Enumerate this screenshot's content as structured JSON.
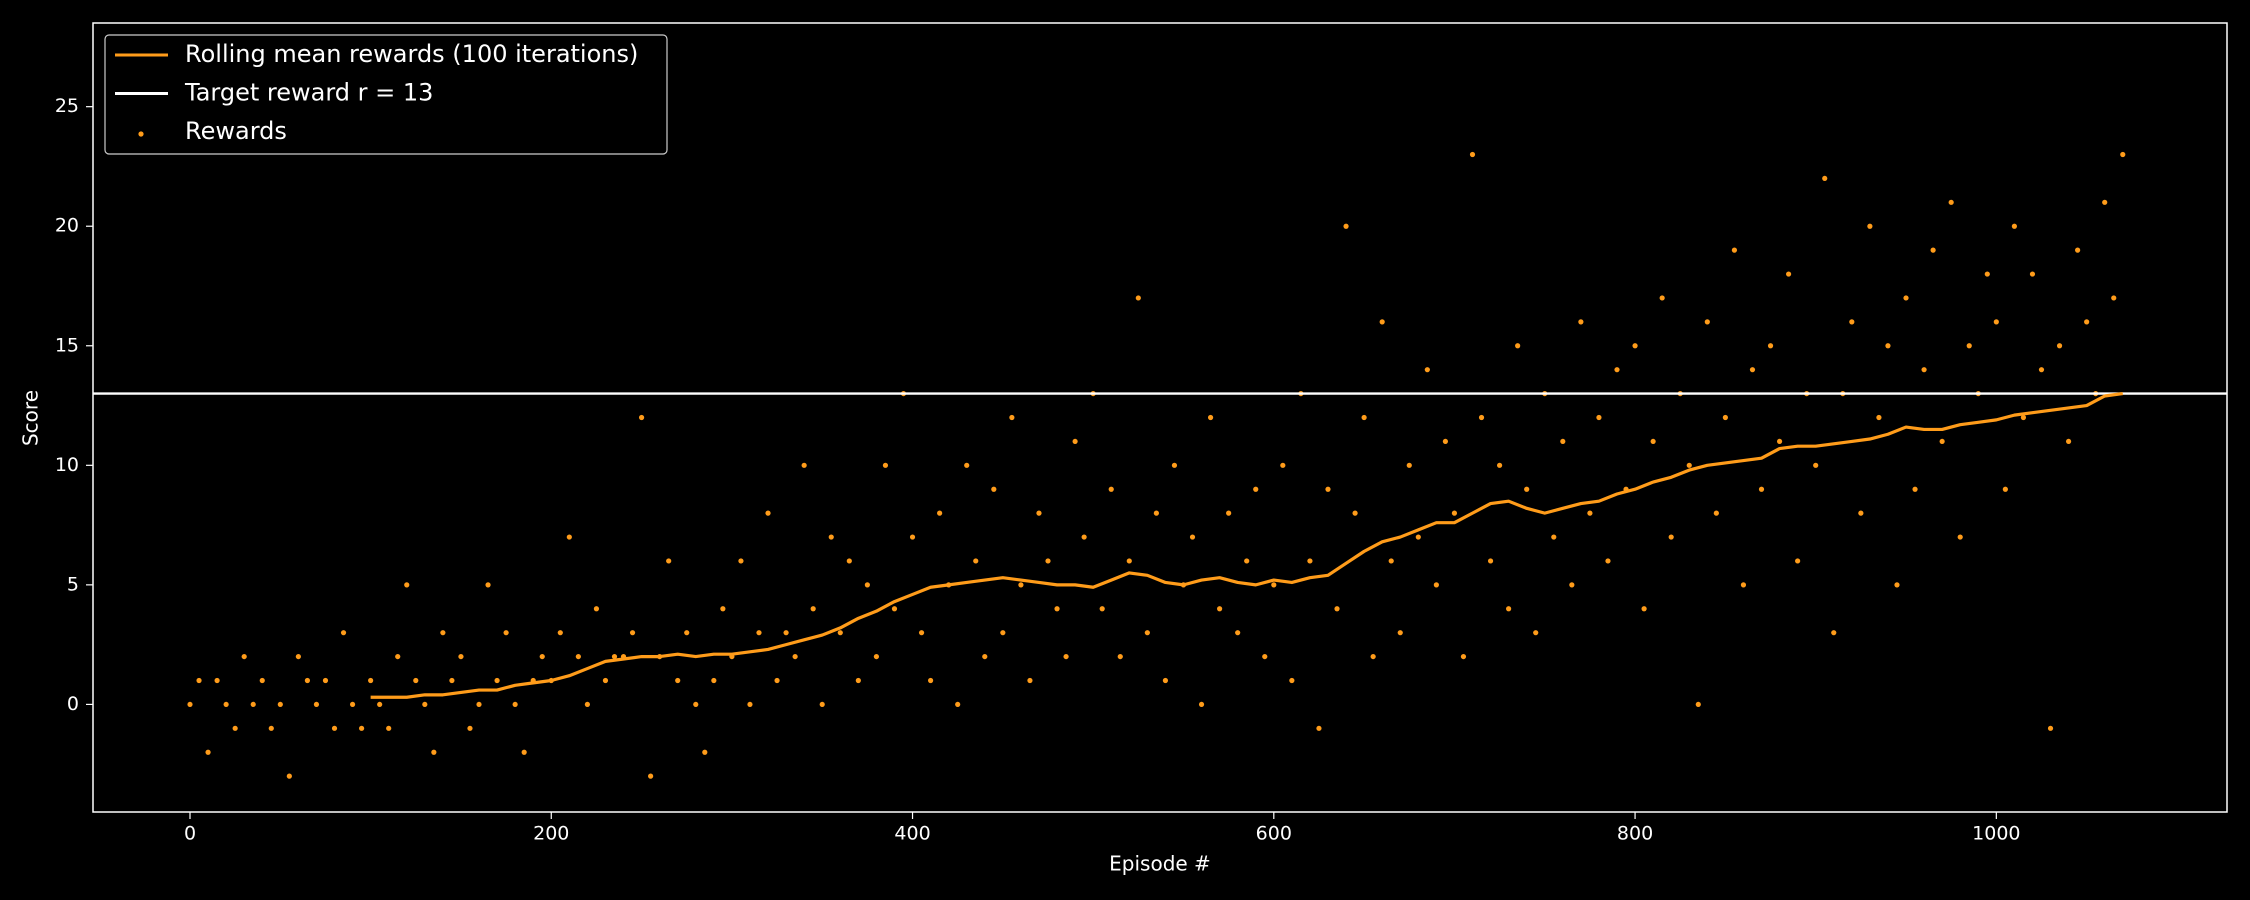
{
  "chart_data": {
    "type": "scatter",
    "x_label": "Episode #",
    "y_label": "Score",
    "xlim": [
      -53.7,
      1127.7
    ],
    "ylim": [
      -4.5,
      28.5
    ],
    "xticks": [
      0,
      200,
      400,
      600,
      800,
      1000
    ],
    "yticks": [
      0,
      5,
      10,
      15,
      20,
      25
    ],
    "legend": "upper left",
    "target": {
      "name": "Target reward r = 13",
      "value": 13,
      "color": "#ffffff"
    },
    "series": [
      {
        "name": "Rolling mean rewards (100 iterations)",
        "type": "line",
        "color": "#ff9c1a",
        "x": [
          100,
          110,
          120,
          130,
          140,
          150,
          160,
          170,
          180,
          190,
          200,
          210,
          220,
          230,
          240,
          250,
          260,
          270,
          280,
          290,
          300,
          310,
          320,
          330,
          340,
          350,
          360,
          370,
          380,
          390,
          400,
          410,
          420,
          430,
          440,
          450,
          460,
          470,
          480,
          490,
          500,
          510,
          520,
          530,
          540,
          550,
          560,
          570,
          580,
          590,
          600,
          610,
          620,
          630,
          640,
          650,
          660,
          670,
          680,
          690,
          700,
          710,
          720,
          730,
          740,
          750,
          760,
          770,
          780,
          790,
          800,
          810,
          820,
          830,
          840,
          850,
          860,
          870,
          880,
          890,
          900,
          910,
          920,
          930,
          940,
          950,
          960,
          970,
          980,
          990,
          1000,
          1010,
          1020,
          1030,
          1040,
          1050,
          1060,
          1070
        ],
        "values": [
          0.3,
          0.3,
          0.3,
          0.4,
          0.4,
          0.5,
          0.6,
          0.6,
          0.8,
          0.9,
          1.0,
          1.2,
          1.5,
          1.8,
          1.9,
          2.0,
          2.0,
          2.1,
          2.0,
          2.1,
          2.1,
          2.2,
          2.3,
          2.5,
          2.7,
          2.9,
          3.2,
          3.6,
          3.9,
          4.3,
          4.6,
          4.9,
          5.0,
          5.1,
          5.2,
          5.3,
          5.2,
          5.1,
          5.0,
          5.0,
          4.9,
          5.2,
          5.5,
          5.4,
          5.1,
          5.0,
          5.2,
          5.3,
          5.1,
          5.0,
          5.2,
          5.1,
          5.3,
          5.4,
          5.9,
          6.4,
          6.8,
          7.0,
          7.3,
          7.6,
          7.6,
          8.0,
          8.4,
          8.5,
          8.2,
          8.0,
          8.2,
          8.4,
          8.5,
          8.8,
          9.0,
          9.3,
          9.5,
          9.8,
          10.0,
          10.1,
          10.2,
          10.3,
          10.7,
          10.8,
          10.8,
          10.9,
          11.0,
          11.1,
          11.3,
          11.6,
          11.5,
          11.5,
          11.7,
          11.8,
          11.9,
          12.1,
          12.2,
          12.3,
          12.4,
          12.5,
          12.9,
          13.0
        ]
      },
      {
        "name": "Rewards",
        "type": "scatter",
        "color": "#ff9c1a",
        "x": [
          0,
          5,
          10,
          15,
          20,
          25,
          30,
          35,
          40,
          45,
          50,
          55,
          60,
          65,
          70,
          75,
          80,
          85,
          90,
          95,
          100,
          105,
          110,
          115,
          120,
          125,
          130,
          135,
          140,
          145,
          150,
          155,
          160,
          165,
          170,
          175,
          180,
          185,
          190,
          195,
          200,
          205,
          210,
          215,
          220,
          225,
          230,
          235,
          240,
          245,
          250,
          255,
          260,
          265,
          270,
          275,
          280,
          285,
          290,
          295,
          300,
          305,
          310,
          315,
          320,
          325,
          330,
          335,
          340,
          345,
          350,
          355,
          360,
          365,
          370,
          375,
          380,
          385,
          390,
          395,
          400,
          405,
          410,
          415,
          420,
          425,
          430,
          435,
          440,
          445,
          450,
          455,
          460,
          465,
          470,
          475,
          480,
          485,
          490,
          495,
          500,
          505,
          510,
          515,
          520,
          525,
          530,
          535,
          540,
          545,
          550,
          555,
          560,
          565,
          570,
          575,
          580,
          585,
          590,
          595,
          600,
          605,
          610,
          615,
          620,
          625,
          630,
          635,
          640,
          645,
          650,
          655,
          660,
          665,
          670,
          675,
          680,
          685,
          690,
          695,
          700,
          705,
          710,
          715,
          720,
          725,
          730,
          735,
          740,
          745,
          750,
          755,
          760,
          765,
          770,
          775,
          780,
          785,
          790,
          795,
          800,
          805,
          810,
          815,
          820,
          825,
          830,
          835,
          840,
          845,
          850,
          855,
          860,
          865,
          870,
          875,
          880,
          885,
          890,
          895,
          900,
          905,
          910,
          915,
          920,
          925,
          930,
          935,
          940,
          945,
          950,
          955,
          960,
          965,
          970,
          975,
          980,
          985,
          990,
          995,
          1000,
          1005,
          1010,
          1015,
          1020,
          1025,
          1030,
          1035,
          1040,
          1045,
          1050,
          1055,
          1060,
          1065,
          1070
        ],
        "values": [
          0,
          1,
          -2,
          1,
          0,
          -1,
          2,
          0,
          1,
          -1,
          0,
          -3,
          2,
          1,
          0,
          1,
          -1,
          3,
          0,
          -1,
          1,
          0,
          -1,
          2,
          5,
          1,
          0,
          -2,
          3,
          1,
          2,
          -1,
          0,
          5,
          1,
          3,
          0,
          -2,
          1,
          2,
          1,
          3,
          7,
          2,
          0,
          4,
          1,
          2,
          2,
          3,
          12,
          -3,
          2,
          6,
          1,
          3,
          0,
          -2,
          1,
          4,
          2,
          6,
          0,
          3,
          8,
          1,
          3,
          2,
          10,
          4,
          0,
          7,
          3,
          6,
          1,
          5,
          2,
          10,
          4,
          13,
          7,
          3,
          1,
          8,
          5,
          0,
          10,
          6,
          2,
          9,
          3,
          12,
          5,
          1,
          8,
          6,
          4,
          2,
          11,
          7,
          13,
          4,
          9,
          2,
          6,
          17,
          3,
          8,
          1,
          10,
          5,
          7,
          0,
          12,
          4,
          8,
          3,
          6,
          9,
          2,
          5,
          10,
          1,
          13,
          6,
          -1,
          9,
          4,
          20,
          8,
          12,
          2,
          16,
          6,
          3,
          10,
          7,
          14,
          5,
          11,
          8,
          2,
          23,
          12,
          6,
          10,
          4,
          15,
          9,
          3,
          13,
          7,
          11,
          5,
          16,
          8,
          12,
          6,
          14,
          9,
          15,
          4,
          11,
          17,
          7,
          13,
          10,
          0,
          16,
          8,
          12,
          19,
          5,
          14,
          9,
          15,
          11,
          18,
          6,
          13,
          10,
          22,
          3,
          13,
          16,
          8,
          20,
          12,
          15,
          5,
          17,
          9,
          14,
          19,
          11,
          21,
          7,
          15,
          13,
          18,
          16,
          9,
          20,
          12,
          18,
          14,
          -1,
          15,
          11,
          19,
          16,
          13,
          21,
          17,
          23
        ]
      }
    ]
  }
}
